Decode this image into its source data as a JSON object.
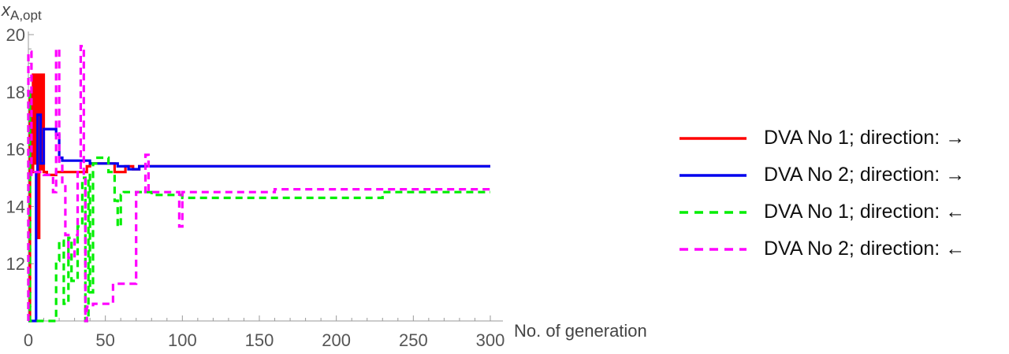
{
  "chart_data": {
    "type": "line",
    "title": "",
    "xlabel": "No. of generation",
    "ylabel_main": "x",
    "ylabel_sub": "A,opt",
    "xlim": [
      0,
      300
    ],
    "ylim": [
      10,
      20
    ],
    "xticks": [
      0,
      50,
      100,
      150,
      200,
      250,
      300
    ],
    "yticks": [
      12,
      14,
      16,
      18,
      20
    ],
    "grid": false,
    "legend_position": "right",
    "series": [
      {
        "name": "DVA No 1; direction: →",
        "color": "#ff0000",
        "dash": "solid",
        "points": [
          [
            0,
            10
          ],
          [
            1,
            10
          ],
          [
            1,
            18
          ],
          [
            2,
            18
          ],
          [
            2,
            15.2
          ],
          [
            3,
            15.2
          ],
          [
            3,
            18.6
          ],
          [
            4,
            18.6
          ],
          [
            4,
            15.5
          ],
          [
            5,
            15.5
          ],
          [
            5,
            18.6
          ],
          [
            6,
            18.6
          ],
          [
            6,
            12.9
          ],
          [
            7,
            12.9
          ],
          [
            7,
            18.6
          ],
          [
            8,
            18.6
          ],
          [
            8,
            15.3
          ],
          [
            9,
            15.3
          ],
          [
            9,
            18.6
          ],
          [
            10,
            18.6
          ],
          [
            10,
            15.2
          ],
          [
            12,
            15.2
          ],
          [
            12,
            15.1
          ],
          [
            18,
            15.1
          ],
          [
            18,
            15.2
          ],
          [
            38,
            15.2
          ],
          [
            38,
            15.4
          ],
          [
            40,
            15.4
          ],
          [
            40,
            15.5
          ],
          [
            56,
            15.5
          ],
          [
            56,
            15.2
          ],
          [
            63,
            15.2
          ],
          [
            63,
            15.4
          ],
          [
            68,
            15.4
          ],
          [
            68,
            15.3
          ],
          [
            72,
            15.3
          ],
          [
            72,
            15.4
          ],
          [
            300,
            15.4
          ]
        ]
      },
      {
        "name": "DVA No 2; direction: →",
        "color": "#0000ee",
        "dash": "solid",
        "points": [
          [
            0,
            10
          ],
          [
            5,
            10
          ],
          [
            5,
            15.2
          ],
          [
            6,
            15.2
          ],
          [
            6,
            17.2
          ],
          [
            8,
            17.2
          ],
          [
            8,
            15.5
          ],
          [
            10,
            15.5
          ],
          [
            10,
            16.7
          ],
          [
            18,
            16.7
          ],
          [
            18,
            16.5
          ],
          [
            20,
            16.5
          ],
          [
            20,
            15.7
          ],
          [
            22,
            15.7
          ],
          [
            22,
            15.6
          ],
          [
            40,
            15.6
          ],
          [
            40,
            15.5
          ],
          [
            58,
            15.5
          ],
          [
            58,
            15.4
          ],
          [
            65,
            15.4
          ],
          [
            65,
            15.3
          ],
          [
            72,
            15.3
          ],
          [
            72,
            15.4
          ],
          [
            300,
            15.4
          ]
        ]
      },
      {
        "name": "DVA No 1; direction: ←",
        "color": "#00ee00",
        "dash": "dashed",
        "points": [
          [
            0,
            10
          ],
          [
            0,
            18.1
          ],
          [
            1,
            18.1
          ],
          [
            1,
            10
          ],
          [
            18,
            10
          ],
          [
            18,
            12.1
          ],
          [
            20,
            12.1
          ],
          [
            20,
            12.8
          ],
          [
            23,
            12.8
          ],
          [
            23,
            10.6
          ],
          [
            26,
            10.6
          ],
          [
            26,
            12.9
          ],
          [
            28,
            12.9
          ],
          [
            28,
            11.4
          ],
          [
            32,
            11.4
          ],
          [
            32,
            13.3
          ],
          [
            35,
            13.3
          ],
          [
            35,
            15
          ],
          [
            37,
            15
          ],
          [
            37,
            10
          ],
          [
            39,
            10
          ],
          [
            39,
            15.1
          ],
          [
            40,
            15.1
          ],
          [
            40,
            11
          ],
          [
            42,
            11
          ],
          [
            42,
            15.5
          ],
          [
            44,
            15.5
          ],
          [
            44,
            15.7
          ],
          [
            52,
            15.7
          ],
          [
            52,
            15.2
          ],
          [
            56,
            15.2
          ],
          [
            56,
            14.2
          ],
          [
            58,
            14.2
          ],
          [
            58,
            13.3
          ],
          [
            60,
            13.3
          ],
          [
            60,
            14.4
          ],
          [
            62,
            14.4
          ],
          [
            62,
            14.5
          ],
          [
            80,
            14.5
          ],
          [
            80,
            14.4
          ],
          [
            100,
            14.4
          ],
          [
            100,
            14.3
          ],
          [
            230,
            14.3
          ],
          [
            230,
            14.5
          ],
          [
            300,
            14.5
          ]
        ]
      },
      {
        "name": "DVA No 2; direction: ←",
        "color": "#ff00ff",
        "dash": "dashed",
        "points": [
          [
            0,
            10
          ],
          [
            0,
            19.4
          ],
          [
            2,
            19.4
          ],
          [
            2,
            15.1
          ],
          [
            4,
            15.1
          ],
          [
            4,
            15.2
          ],
          [
            10,
            15.2
          ],
          [
            10,
            15.1
          ],
          [
            16,
            15.1
          ],
          [
            16,
            14.5
          ],
          [
            18,
            14.5
          ],
          [
            18,
            19.5
          ],
          [
            20,
            19.5
          ],
          [
            20,
            15.5
          ],
          [
            22,
            15.5
          ],
          [
            22,
            14.7
          ],
          [
            24,
            14.7
          ],
          [
            24,
            13
          ],
          [
            26,
            13
          ],
          [
            26,
            12.2
          ],
          [
            30,
            12.2
          ],
          [
            30,
            13
          ],
          [
            32,
            13
          ],
          [
            32,
            15.3
          ],
          [
            34,
            15.3
          ],
          [
            34,
            19.6
          ],
          [
            36,
            19.6
          ],
          [
            36,
            15
          ],
          [
            37,
            15
          ],
          [
            37,
            10
          ],
          [
            38,
            10
          ],
          [
            38,
            10.5
          ],
          [
            42,
            10.5
          ],
          [
            42,
            10.6
          ],
          [
            55,
            10.6
          ],
          [
            55,
            11.3
          ],
          [
            70,
            11.3
          ],
          [
            70,
            14.5
          ],
          [
            76,
            14.5
          ],
          [
            76,
            15.8
          ],
          [
            78,
            15.8
          ],
          [
            78,
            14.5
          ],
          [
            98,
            14.5
          ],
          [
            98,
            13.3
          ],
          [
            100,
            13.3
          ],
          [
            100,
            14.5
          ],
          [
            160,
            14.5
          ],
          [
            160,
            14.6
          ],
          [
            300,
            14.6
          ]
        ]
      }
    ]
  }
}
